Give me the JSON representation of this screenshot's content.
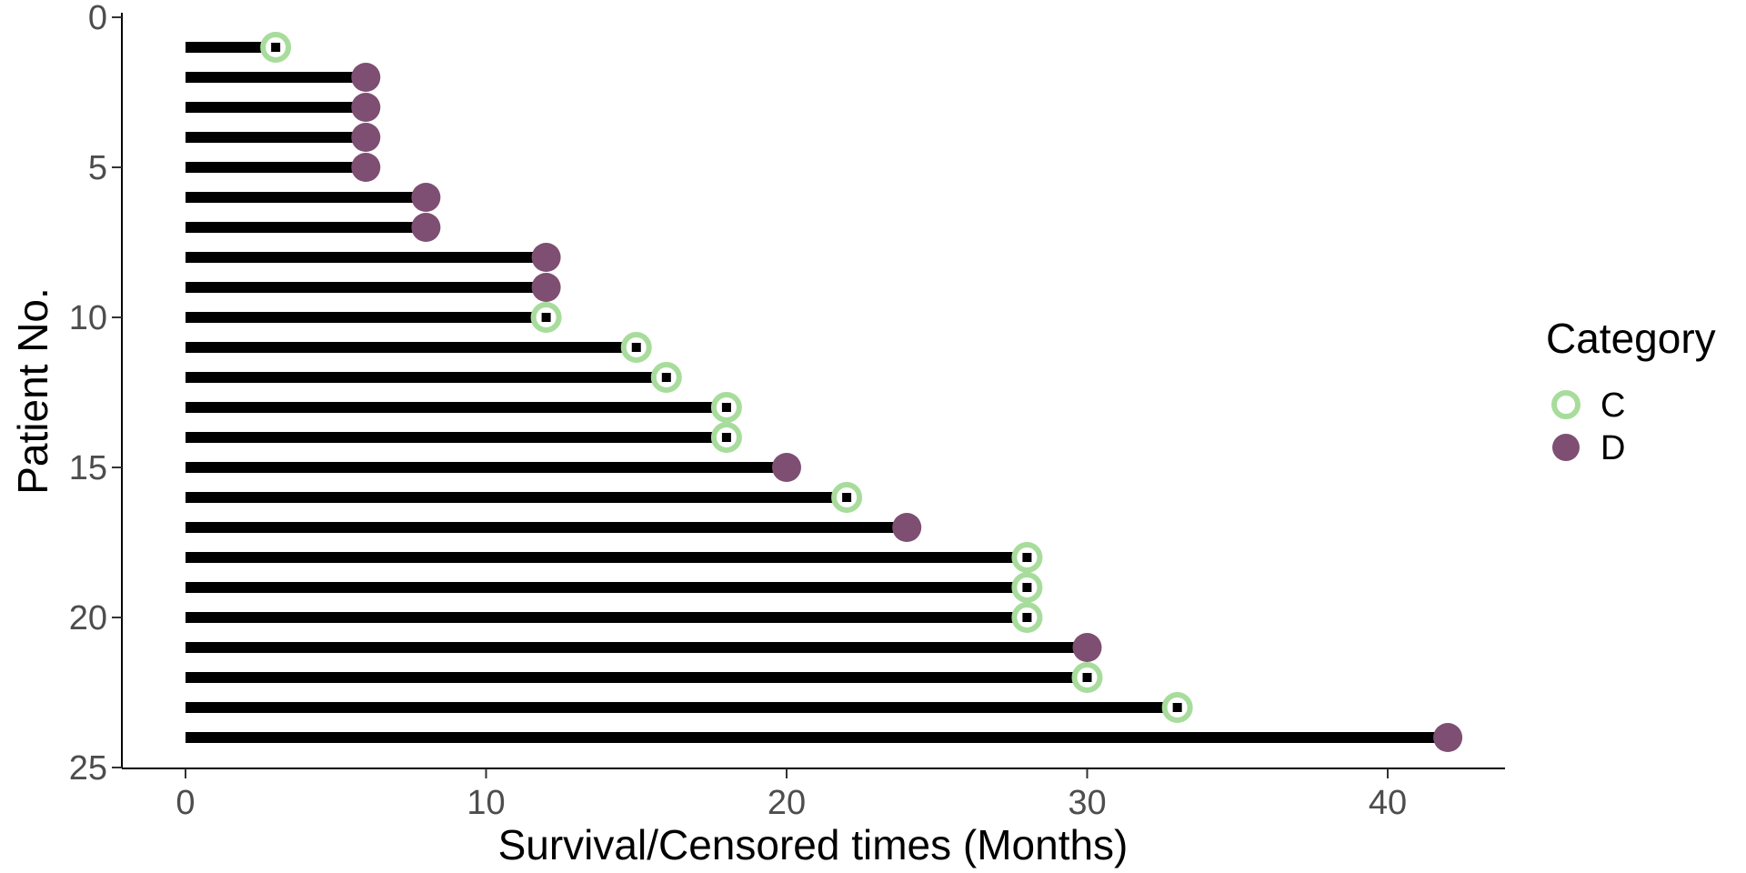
{
  "chart_data": {
    "type": "scatter",
    "subtype": "swimmer-plot",
    "xlabel": "Survival/Censored times (Months)",
    "ylabel": "Patient No.",
    "xlim": [
      -2,
      44
    ],
    "ylim": [
      25,
      0
    ],
    "y_reversed": true,
    "x_ticks": [
      0,
      10,
      20,
      30,
      40
    ],
    "y_ticks": [
      0,
      5,
      10,
      15,
      20,
      25
    ],
    "grid": false,
    "legend": {
      "title": "Category",
      "placement": "right",
      "entries": [
        {
          "label": "C",
          "marker": "open-circle",
          "color": "#A8DC9C"
        },
        {
          "label": "D",
          "marker": "filled-circle",
          "color": "#7E4F72"
        }
      ]
    },
    "bar_color": "#000000",
    "censor_mark_color": "#000000",
    "patients": [
      {
        "patient": 1,
        "time": 3,
        "category": "C"
      },
      {
        "patient": 2,
        "time": 6,
        "category": "D"
      },
      {
        "patient": 3,
        "time": 6,
        "category": "D"
      },
      {
        "patient": 4,
        "time": 6,
        "category": "D"
      },
      {
        "patient": 5,
        "time": 6,
        "category": "D"
      },
      {
        "patient": 6,
        "time": 8,
        "category": "D"
      },
      {
        "patient": 7,
        "time": 8,
        "category": "D"
      },
      {
        "patient": 8,
        "time": 12,
        "category": "D"
      },
      {
        "patient": 9,
        "time": 12,
        "category": "D"
      },
      {
        "patient": 10,
        "time": 12,
        "category": "C"
      },
      {
        "patient": 11,
        "time": 15,
        "category": "C"
      },
      {
        "patient": 12,
        "time": 16,
        "category": "C"
      },
      {
        "patient": 13,
        "time": 18,
        "category": "C"
      },
      {
        "patient": 14,
        "time": 18,
        "category": "C"
      },
      {
        "patient": 15,
        "time": 20,
        "category": "D"
      },
      {
        "patient": 16,
        "time": 22,
        "category": "C"
      },
      {
        "patient": 17,
        "time": 24,
        "category": "D"
      },
      {
        "patient": 18,
        "time": 28,
        "category": "C"
      },
      {
        "patient": 19,
        "time": 28,
        "category": "C"
      },
      {
        "patient": 20,
        "time": 28,
        "category": "C"
      },
      {
        "patient": 21,
        "time": 30,
        "category": "D"
      },
      {
        "patient": 22,
        "time": 30,
        "category": "C"
      },
      {
        "patient": 23,
        "time": 33,
        "category": "C"
      },
      {
        "patient": 24,
        "time": 42,
        "category": "D"
      }
    ]
  }
}
